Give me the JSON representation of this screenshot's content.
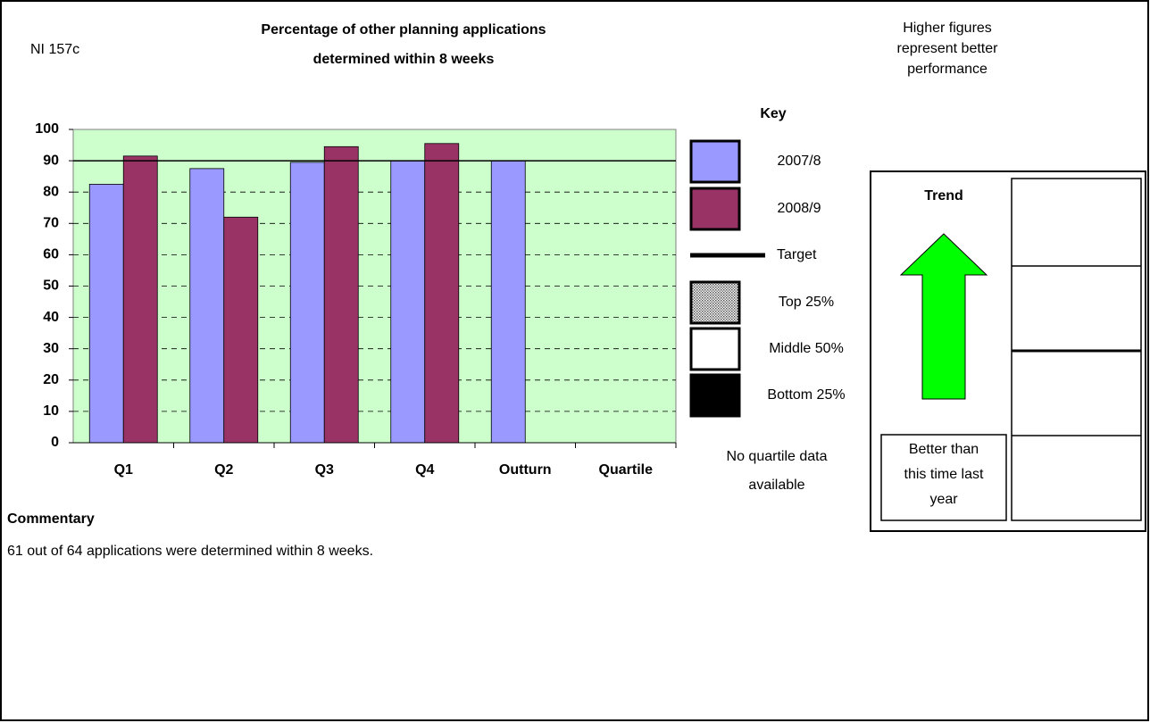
{
  "indicator": "NI 157c",
  "note": [
    "Higher figures",
    "represent better",
    "performance"
  ],
  "chart_data": {
    "type": "bar",
    "title": [
      "Percentage of other planning applications",
      "determined within 8 weeks"
    ],
    "categories": [
      "Q1",
      "Q2",
      "Q3",
      "Q4",
      "Outturn",
      "Quartile"
    ],
    "series": [
      {
        "name": "2007/8",
        "color": "#9999ff",
        "values": [
          82.5,
          87.5,
          89.5,
          90,
          90,
          null
        ]
      },
      {
        "name": "2008/9",
        "color": "#993366",
        "values": [
          91.5,
          72,
          94.5,
          95.5,
          null,
          null
        ]
      }
    ],
    "target": {
      "name": "Target",
      "value": 90
    },
    "ylim": [
      0,
      100
    ],
    "yticks": [
      0,
      10,
      20,
      30,
      40,
      50,
      60,
      70,
      80,
      90,
      100
    ],
    "grid": true,
    "background": "#ccffcc"
  },
  "key": {
    "title": "Key",
    "quartiles": [
      "Top 25%",
      "Middle 50%",
      "Bottom 25%"
    ],
    "no_data": [
      "No quartile data",
      "available"
    ]
  },
  "trend": {
    "title": "Trend",
    "label": [
      "Better than",
      "this time last",
      "year"
    ]
  },
  "commentary": {
    "title": "Commentary",
    "text": "61 out of 64 applications were determined within 8 weeks."
  }
}
